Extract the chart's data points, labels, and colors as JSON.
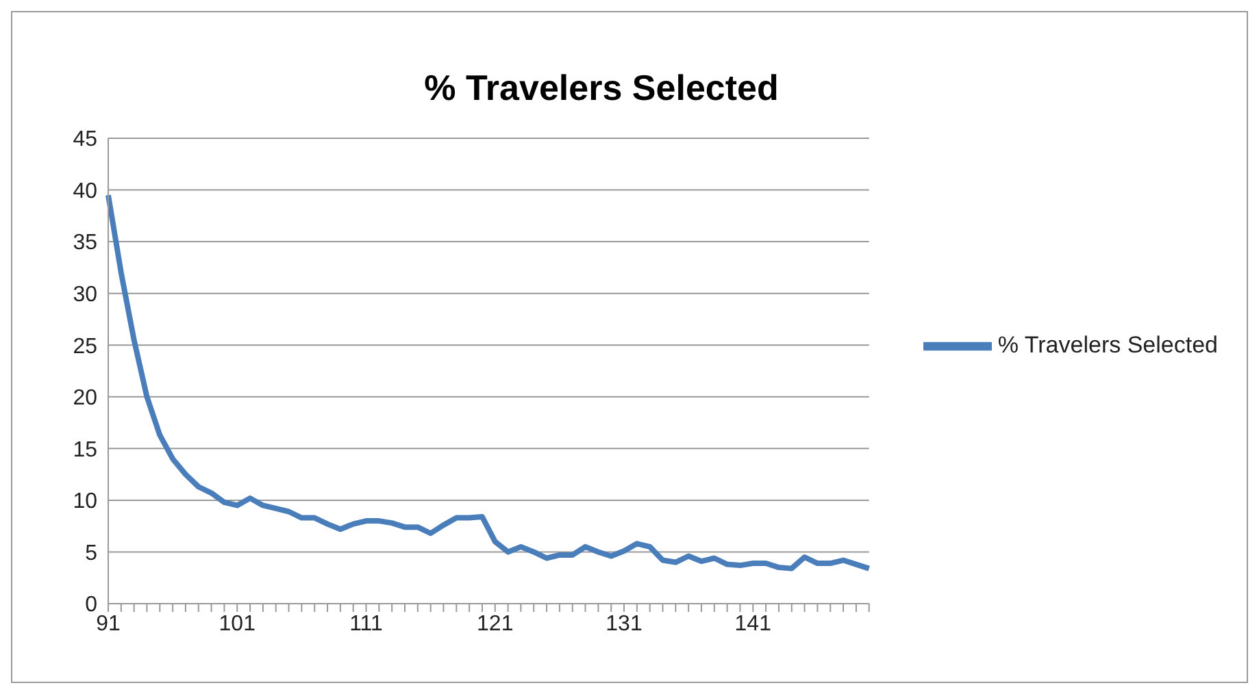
{
  "chart_data": {
    "type": "line",
    "title": "% Travelers Selected",
    "categories": [
      "91",
      null,
      null,
      null,
      null,
      null,
      null,
      null,
      null,
      null,
      "101",
      null,
      null,
      null,
      null,
      null,
      null,
      null,
      null,
      null,
      "111",
      null,
      null,
      null,
      null,
      null,
      null,
      null,
      null,
      null,
      "121",
      null,
      null,
      null,
      null,
      null,
      null,
      null,
      null,
      null,
      "131",
      null,
      null,
      null,
      null,
      null,
      null,
      null,
      null,
      null,
      "141",
      null,
      null,
      null,
      null,
      null,
      null,
      null,
      null,
      null
    ],
    "series": [
      {
        "name": "% Travelers Selected",
        "color": "#4a7ebb",
        "values": [
          39.5,
          32,
          25.5,
          20,
          16.3,
          14,
          12.5,
          11.3,
          10.7,
          9.8,
          9.5,
          10.2,
          9.5,
          9.2,
          8.9,
          8.3,
          8.3,
          7.7,
          7.2,
          7.7,
          8.0,
          8.0,
          7.8,
          7.4,
          7.4,
          6.8,
          7.6,
          8.3,
          8.3,
          8.4,
          6.0,
          5.0,
          5.5,
          5.0,
          4.4,
          4.7,
          4.7,
          5.5,
          5.0,
          4.6,
          5.1,
          5.8,
          5.5,
          4.2,
          4.0,
          4.6,
          4.1,
          4.4,
          3.8,
          3.7,
          3.9,
          3.9,
          3.5,
          3.4,
          4.5,
          3.9,
          3.9,
          4.2,
          3.8,
          3.4
        ]
      }
    ],
    "ylim": [
      0,
      45
    ],
    "yticks": [
      0,
      5,
      10,
      15,
      20,
      25,
      30,
      35,
      40,
      45
    ],
    "grid": "y",
    "legend": "right",
    "marker": "none",
    "line_style": "solid"
  }
}
